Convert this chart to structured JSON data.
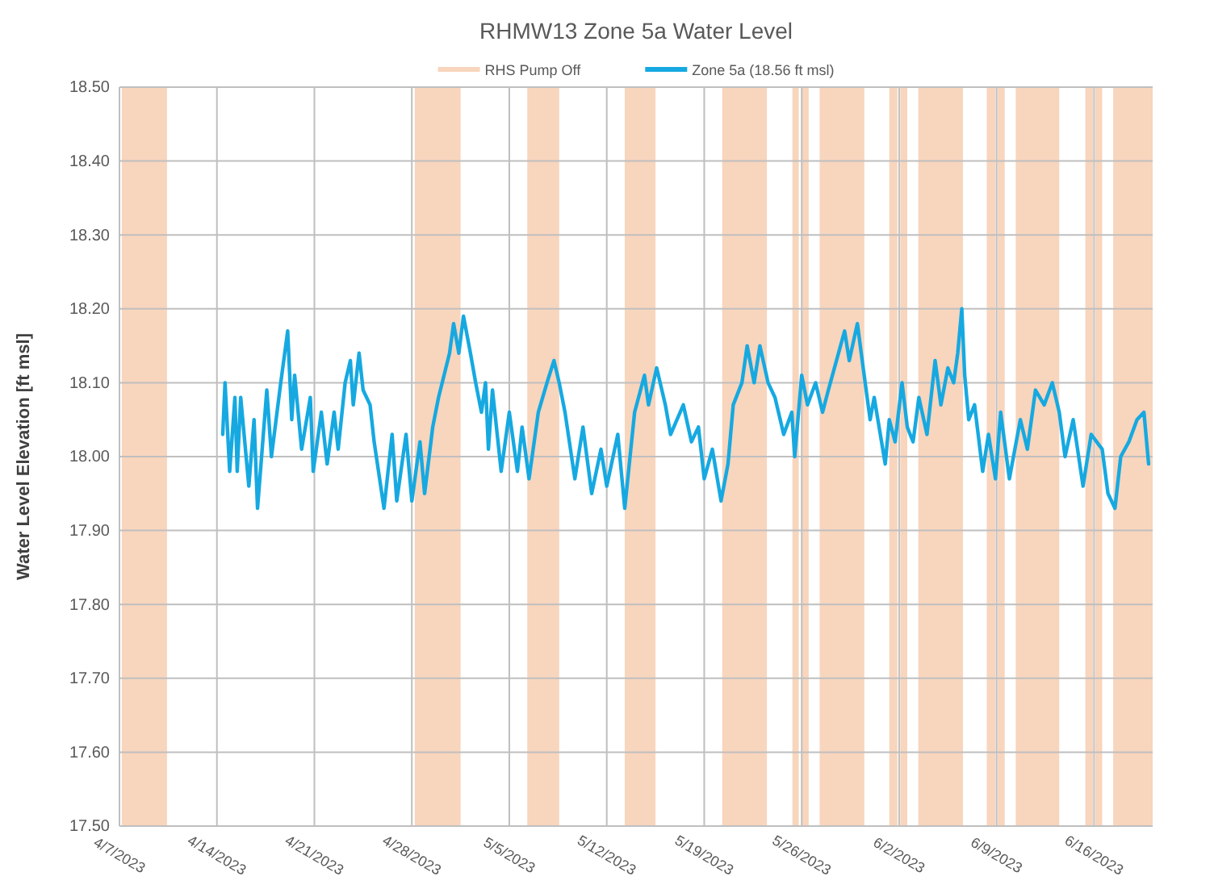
{
  "chart_data": {
    "type": "line",
    "title": "RHMW13 Zone 5a Water Level",
    "ylabel": "Water Level Elevation [ft msl]",
    "xlim": [
      "2023-04-07",
      "2023-06-20T05:00"
    ],
    "xticks": [
      {
        "value": "2023-04-07",
        "label": "4/7/2023"
      },
      {
        "value": "2023-04-14",
        "label": "4/14/2023"
      },
      {
        "value": "2023-04-21",
        "label": "4/21/2023"
      },
      {
        "value": "2023-04-28",
        "label": "4/28/2023"
      },
      {
        "value": "2023-05-05",
        "label": "5/5/2023"
      },
      {
        "value": "2023-05-12",
        "label": "5/12/2023"
      },
      {
        "value": "2023-05-19",
        "label": "5/19/2023"
      },
      {
        "value": "2023-05-26",
        "label": "5/26/2023"
      },
      {
        "value": "2023-06-02",
        "label": "6/2/2023"
      },
      {
        "value": "2023-06-09",
        "label": "6/9/2023"
      },
      {
        "value": "2023-06-16",
        "label": "6/16/2023"
      }
    ],
    "ylim": [
      17.5,
      18.5
    ],
    "yticks": [
      {
        "value": 17.5,
        "label": "17.50"
      },
      {
        "value": 17.6,
        "label": "17.60"
      },
      {
        "value": 17.7,
        "label": "17.70"
      },
      {
        "value": 17.8,
        "label": "17.80"
      },
      {
        "value": 17.9,
        "label": "17.90"
      },
      {
        "value": 18.0,
        "label": "18.00"
      },
      {
        "value": 18.1,
        "label": "18.10"
      },
      {
        "value": 18.2,
        "label": "18.20"
      },
      {
        "value": 18.3,
        "label": "18.30"
      },
      {
        "value": 18.4,
        "label": "18.40"
      },
      {
        "value": 18.5,
        "label": "18.50"
      }
    ],
    "grid": true,
    "legend": "top",
    "line_style": "solid",
    "bands": [
      {
        "axis": "x",
        "from": "2023-04-07T04:00",
        "to": "2023-04-10T10:00",
        "label": "RHS Pump Off",
        "color": "#f8d5bd"
      },
      {
        "axis": "x",
        "from": "2023-04-28T05:00",
        "to": "2023-05-01T12:00",
        "color": "#f8d5bd"
      },
      {
        "axis": "x",
        "from": "2023-05-06T07:00",
        "to": "2023-05-08T14:00",
        "color": "#f8d5bd"
      },
      {
        "axis": "x",
        "from": "2023-05-13T07:00",
        "to": "2023-05-15T12:00",
        "color": "#f8d5bd"
      },
      {
        "axis": "x",
        "from": "2023-05-20T07:00",
        "to": "2023-05-23T12:00",
        "color": "#f8d5bd"
      },
      {
        "axis": "x",
        "from": "2023-05-25T08:00",
        "to": "2023-05-25T19:00",
        "color": "#f8d5bd"
      },
      {
        "axis": "x",
        "from": "2023-05-26T00:00",
        "to": "2023-05-26T12:00",
        "color": "#f8d5bd"
      },
      {
        "axis": "x",
        "from": "2023-05-27T07:00",
        "to": "2023-05-30T12:00",
        "color": "#f8d5bd"
      },
      {
        "axis": "x",
        "from": "2023-06-01T07:00",
        "to": "2023-06-01T21:00",
        "color": "#f8d5bd"
      },
      {
        "axis": "x",
        "from": "2023-06-02T02:00",
        "to": "2023-06-02T14:00",
        "color": "#f8d5bd"
      },
      {
        "axis": "x",
        "from": "2023-06-03T09:00",
        "to": "2023-06-06T14:00",
        "color": "#f8d5bd"
      },
      {
        "axis": "x",
        "from": "2023-06-08T07:00",
        "to": "2023-06-08T22:00",
        "color": "#f8d5bd"
      },
      {
        "axis": "x",
        "from": "2023-06-09T02:00",
        "to": "2023-06-09T14:00",
        "color": "#f8d5bd"
      },
      {
        "axis": "x",
        "from": "2023-06-10T09:00",
        "to": "2023-06-13T12:00",
        "color": "#f8d5bd"
      },
      {
        "axis": "x",
        "from": "2023-06-15T09:00",
        "to": "2023-06-15T22:00",
        "color": "#f8d5bd"
      },
      {
        "axis": "x",
        "from": "2023-06-16T02:00",
        "to": "2023-06-16T14:00",
        "color": "#f8d5bd"
      },
      {
        "axis": "x",
        "from": "2023-06-17T09:00",
        "to": "2023-06-20T05:00",
        "color": "#f8d5bd"
      }
    ],
    "series": [
      {
        "name": "Zone 5a (18.56 ft msl)",
        "color": "#16a9e1",
        "x": [
          "2023-04-14T10:00",
          "2023-04-14T14:00",
          "2023-04-14T22:00",
          "2023-04-15T07:00",
          "2023-04-15T11:00",
          "2023-04-15T17:00",
          "2023-04-16T07:00",
          "2023-04-16T16:00",
          "2023-04-16T22:00",
          "2023-04-17T14:00",
          "2023-04-17T22:00",
          "2023-04-18T14:00",
          "2023-04-19T02:00",
          "2023-04-19T09:00",
          "2023-04-19T14:00",
          "2023-04-20T02:00",
          "2023-04-20T17:00",
          "2023-04-20T22:00",
          "2023-04-21T12:00",
          "2023-04-21T22:00",
          "2023-04-22T10:00",
          "2023-04-22T17:00",
          "2023-04-23T05:00",
          "2023-04-23T14:00",
          "2023-04-23T19:00",
          "2023-04-24T05:00",
          "2023-04-24T12:00",
          "2023-04-25T00:00",
          "2023-04-25T07:00",
          "2023-04-26T00:00",
          "2023-04-26T14:00",
          "2023-04-26T22:00",
          "2023-04-27T14:00",
          "2023-04-28T00:00",
          "2023-04-28T14:00",
          "2023-04-28T22:00",
          "2023-04-29T12:00",
          "2023-04-29T22:00",
          "2023-04-30T17:00",
          "2023-05-01T00:00",
          "2023-05-01T09:00",
          "2023-05-01T17:00",
          "2023-05-02T05:00",
          "2023-05-02T14:00",
          "2023-05-03T00:00",
          "2023-05-03T07:00",
          "2023-05-03T12:00",
          "2023-05-03T19:00",
          "2023-05-04T10:00",
          "2023-05-05T00:00",
          "2023-05-05T14:00",
          "2023-05-05T22:00",
          "2023-05-06T10:00",
          "2023-05-07T02:00",
          "2023-05-07T17:00",
          "2023-05-08T05:00",
          "2023-05-08T14:00",
          "2023-05-09T00:00",
          "2023-05-09T17:00",
          "2023-05-10T07:00",
          "2023-05-10T22:00",
          "2023-05-11T14:00",
          "2023-05-12T00:00",
          "2023-05-12T19:00",
          "2023-05-13T07:00",
          "2023-05-14T00:00",
          "2023-05-14T17:00",
          "2023-05-15T00:00",
          "2023-05-15T14:00",
          "2023-05-16T05:00",
          "2023-05-16T14:00",
          "2023-05-17T12:00",
          "2023-05-18T02:00",
          "2023-05-18T14:00",
          "2023-05-19T00:00",
          "2023-05-19T14:00",
          "2023-05-20T05:00",
          "2023-05-20T17:00",
          "2023-05-21T02:00",
          "2023-05-21T17:00",
          "2023-05-22T02:00",
          "2023-05-22T14:00",
          "2023-05-23T00:00",
          "2023-05-23T14:00",
          "2023-05-24T02:00",
          "2023-05-24T17:00",
          "2023-05-25T07:00",
          "2023-05-25T12:00",
          "2023-05-26T00:00",
          "2023-05-26T10:00",
          "2023-05-27T00:00",
          "2023-05-27T12:00",
          "2023-05-27T22:00",
          "2023-05-28T12:00",
          "2023-05-29T02:00",
          "2023-05-29T10:00",
          "2023-05-30T00:00",
          "2023-05-30T10:00",
          "2023-05-30T22:00",
          "2023-05-31T05:00",
          "2023-06-01T00:00",
          "2023-06-01T07:00",
          "2023-06-01T17:00",
          "2023-06-02T05:00",
          "2023-06-02T14:00",
          "2023-06-03T00:00",
          "2023-06-03T10:00",
          "2023-06-04T00:00",
          "2023-06-04T14:00",
          "2023-06-05T00:00",
          "2023-06-05T12:00",
          "2023-06-05T22:00",
          "2023-06-06T05:00",
          "2023-06-06T12:00",
          "2023-06-06T17:00",
          "2023-06-07T00:00",
          "2023-06-07T10:00",
          "2023-06-08T00:00",
          "2023-06-08T10:00",
          "2023-06-08T22:00",
          "2023-06-09T07:00",
          "2023-06-09T22:00",
          "2023-06-10T17:00",
          "2023-06-11T05:00",
          "2023-06-11T19:00",
          "2023-06-12T10:00",
          "2023-06-13T00:00",
          "2023-06-13T12:00",
          "2023-06-13T22:00",
          "2023-06-14T12:00",
          "2023-06-15T05:00",
          "2023-06-15T19:00",
          "2023-06-16T14:00",
          "2023-06-17T00:00",
          "2023-06-17T12:00",
          "2023-06-17T22:00",
          "2023-06-18T12:00",
          "2023-06-19T02:00",
          "2023-06-19T14:00",
          "2023-06-19T22:00"
        ],
        "values": [
          18.03,
          18.1,
          17.98,
          18.08,
          17.98,
          18.08,
          17.96,
          18.05,
          17.93,
          18.09,
          18.0,
          18.1,
          18.17,
          18.05,
          18.11,
          18.01,
          18.08,
          17.98,
          18.06,
          17.99,
          18.06,
          18.01,
          18.1,
          18.13,
          18.07,
          18.14,
          18.09,
          18.07,
          18.02,
          17.93,
          18.03,
          17.94,
          18.03,
          17.94,
          18.02,
          17.95,
          18.04,
          18.08,
          18.14,
          18.18,
          18.14,
          18.19,
          18.14,
          18.1,
          18.06,
          18.1,
          18.01,
          18.09,
          17.98,
          18.06,
          17.98,
          18.04,
          17.97,
          18.06,
          18.1,
          18.13,
          18.1,
          18.06,
          17.97,
          18.04,
          17.95,
          18.01,
          17.96,
          18.03,
          17.93,
          18.06,
          18.11,
          18.07,
          18.12,
          18.07,
          18.03,
          18.07,
          18.02,
          18.04,
          17.97,
          18.01,
          17.94,
          17.99,
          18.07,
          18.1,
          18.15,
          18.1,
          18.15,
          18.1,
          18.08,
          18.03,
          18.06,
          18.0,
          18.11,
          18.07,
          18.1,
          18.06,
          18.09,
          18.13,
          18.17,
          18.13,
          18.18,
          18.12,
          18.05,
          18.08,
          17.99,
          18.05,
          18.02,
          18.1,
          18.04,
          18.02,
          18.08,
          18.03,
          18.13,
          18.07,
          18.12,
          18.1,
          18.14,
          18.2,
          18.11,
          18.05,
          18.07,
          17.98,
          18.03,
          17.97,
          18.06,
          17.97,
          18.05,
          18.01,
          18.09,
          18.07,
          18.1,
          18.06,
          18.0,
          18.05,
          17.96,
          18.03,
          18.01,
          17.95,
          17.93,
          18.0,
          18.02,
          18.05,
          18.06,
          17.99
        ]
      }
    ]
  }
}
